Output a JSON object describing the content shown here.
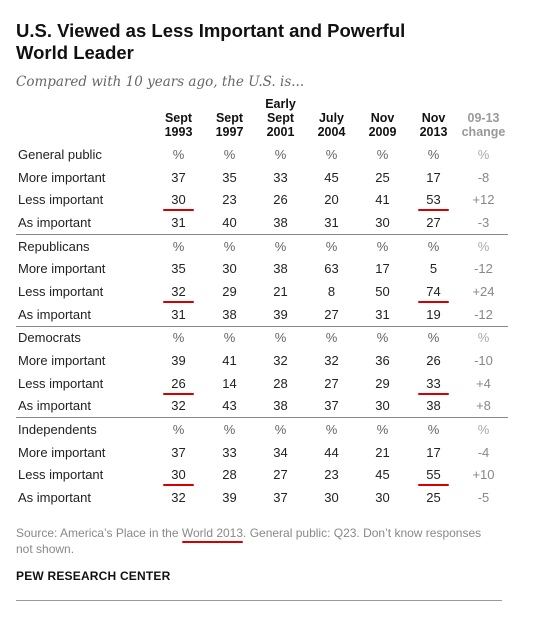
{
  "chart_data": {
    "type": "table",
    "title": "U.S. Viewed as Less Important and Powerful World Leader",
    "subtitle": "Compared with 10 years ago, the U.S. is...",
    "columns": [
      {
        "line1": "",
        "line2": "Sept",
        "line3": "1993"
      },
      {
        "line1": "",
        "line2": "Sept",
        "line3": "1997"
      },
      {
        "line1": "Early",
        "line2": "Sept",
        "line3": "2001"
      },
      {
        "line1": "",
        "line2": "July",
        "line3": "2004"
      },
      {
        "line1": "",
        "line2": "Nov",
        "line3": "2009"
      },
      {
        "line1": "",
        "line2": "Nov",
        "line3": "2013"
      },
      {
        "line1": "",
        "line2": "09-13",
        "line3": "change"
      }
    ],
    "pct_row": [
      "%",
      "%",
      "%",
      "%",
      "%",
      "%",
      "%"
    ],
    "groups": [
      {
        "name": "General public",
        "rows": [
          {
            "label": "More important",
            "values": [
              "37",
              "35",
              "33",
              "45",
              "25",
              "17",
              "-8"
            ]
          },
          {
            "label": "Less important",
            "values": [
              "30",
              "23",
              "26",
              "20",
              "41",
              "53",
              "+12"
            ]
          },
          {
            "label": "As important",
            "values": [
              "31",
              "40",
              "38",
              "31",
              "30",
              "27",
              "-3"
            ]
          }
        ]
      },
      {
        "name": "Republicans",
        "rows": [
          {
            "label": "More important",
            "values": [
              "35",
              "30",
              "38",
              "63",
              "17",
              "5",
              "-12"
            ]
          },
          {
            "label": "Less important",
            "values": [
              "32",
              "29",
              "21",
              "8",
              "50",
              "74",
              "+24"
            ]
          },
          {
            "label": "As important",
            "values": [
              "31",
              "38",
              "39",
              "27",
              "31",
              "19",
              "-12"
            ]
          }
        ]
      },
      {
        "name": "Democrats",
        "rows": [
          {
            "label": "More important",
            "values": [
              "39",
              "41",
              "32",
              "32",
              "36",
              "26",
              "-10"
            ]
          },
          {
            "label": "Less important",
            "values": [
              "26",
              "14",
              "28",
              "27",
              "29",
              "33",
              "+4"
            ]
          },
          {
            "label": "As important",
            "values": [
              "32",
              "43",
              "38",
              "37",
              "30",
              "38",
              "+8"
            ]
          }
        ]
      },
      {
        "name": "Independents",
        "rows": [
          {
            "label": "More important",
            "values": [
              "37",
              "33",
              "34",
              "44",
              "21",
              "17",
              "-4"
            ]
          },
          {
            "label": "Less important",
            "values": [
              "30",
              "28",
              "27",
              "23",
              "45",
              "55",
              "+10"
            ]
          },
          {
            "label": "As important",
            "values": [
              "32",
              "39",
              "37",
              "30",
              "30",
              "25",
              "-5"
            ]
          }
        ]
      }
    ],
    "highlighted_cells": [
      "Less important / Sept 1993",
      "Less important / Nov 2013"
    ],
    "highlight_color": "#d60000"
  },
  "source": {
    "before": "Source: America’s Place in the ",
    "link": "World 2013",
    "after": ". General public: Q23. Don’t know responses not shown."
  },
  "brand": "PEW RESEARCH CENTER"
}
